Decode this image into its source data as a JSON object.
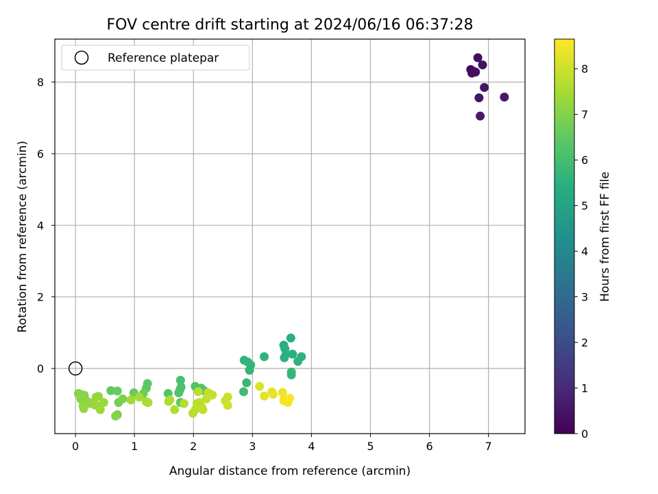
{
  "chart_data": {
    "type": "scatter",
    "title": "FOV centre drift starting at 2024/06/16 06:37:28",
    "xlabel": "Angular distance from reference (arcmin)",
    "ylabel": "Rotation from reference (arcmin)",
    "xlim": [
      -0.35,
      7.62
    ],
    "ylim": [
      -1.82,
      9.2
    ],
    "xticks": [
      0,
      1,
      2,
      3,
      4,
      5,
      6,
      7
    ],
    "yticks": [
      0,
      2,
      4,
      6,
      8
    ],
    "grid": true,
    "legend": {
      "position": "top-left",
      "entries": [
        "Reference platepar"
      ]
    },
    "reference_point": {
      "x": 0,
      "y": 0,
      "label": "Reference platepar"
    },
    "colorbar": {
      "label": "Hours from first FF file",
      "colormap": "viridis",
      "range": [
        0,
        8.65
      ],
      "ticks": [
        0,
        1,
        2,
        3,
        4,
        5,
        6,
        7,
        8
      ]
    },
    "points": [
      {
        "x": 6.7,
        "y": 8.35,
        "c": 0.2
      },
      {
        "x": 6.75,
        "y": 8.3,
        "c": 0.25
      },
      {
        "x": 6.72,
        "y": 8.25,
        "c": 0.3
      },
      {
        "x": 6.78,
        "y": 8.28,
        "c": 0.3
      },
      {
        "x": 6.82,
        "y": 8.68,
        "c": 0.35
      },
      {
        "x": 6.9,
        "y": 8.48,
        "c": 0.4
      },
      {
        "x": 6.93,
        "y": 7.85,
        "c": 0.5
      },
      {
        "x": 6.84,
        "y": 7.56,
        "c": 0.5
      },
      {
        "x": 6.86,
        "y": 7.05,
        "c": 0.6
      },
      {
        "x": 7.27,
        "y": 7.58,
        "c": 0.6
      },
      {
        "x": 3.65,
        "y": 0.85,
        "c": 5.4
      },
      {
        "x": 3.53,
        "y": 0.65,
        "c": 5.4
      },
      {
        "x": 3.55,
        "y": 0.55,
        "c": 5.45
      },
      {
        "x": 3.68,
        "y": 0.4,
        "c": 5.45
      },
      {
        "x": 3.83,
        "y": 0.33,
        "c": 5.5
      },
      {
        "x": 3.57,
        "y": 0.4,
        "c": 5.5
      },
      {
        "x": 3.54,
        "y": 0.3,
        "c": 5.5
      },
      {
        "x": 3.77,
        "y": 0.2,
        "c": 5.55
      },
      {
        "x": 3.2,
        "y": 0.33,
        "c": 5.55
      },
      {
        "x": 2.86,
        "y": 0.23,
        "c": 5.6
      },
      {
        "x": 2.92,
        "y": 0.18,
        "c": 5.6
      },
      {
        "x": 2.97,
        "y": 0.1,
        "c": 5.65
      },
      {
        "x": 2.95,
        "y": -0.05,
        "c": 5.65
      },
      {
        "x": 3.66,
        "y": -0.1,
        "c": 5.7
      },
      {
        "x": 3.66,
        "y": -0.18,
        "c": 5.7
      },
      {
        "x": 2.9,
        "y": -0.4,
        "c": 5.8
      },
      {
        "x": 2.85,
        "y": -0.65,
        "c": 5.9
      },
      {
        "x": 1.78,
        "y": -0.33,
        "c": 6.05
      },
      {
        "x": 1.79,
        "y": -0.52,
        "c": 6.1
      },
      {
        "x": 1.77,
        "y": -0.6,
        "c": 6.15
      },
      {
        "x": 1.75,
        "y": -0.68,
        "c": 6.2
      },
      {
        "x": 1.57,
        "y": -0.7,
        "c": 6.25
      },
      {
        "x": 2.03,
        "y": -0.5,
        "c": 6.2
      },
      {
        "x": 2.13,
        "y": -0.55,
        "c": 6.25
      },
      {
        "x": 2.18,
        "y": -0.62,
        "c": 6.3
      },
      {
        "x": 1.78,
        "y": -0.95,
        "c": 6.4
      },
      {
        "x": 1.22,
        "y": -0.42,
        "c": 6.4
      },
      {
        "x": 1.2,
        "y": -0.55,
        "c": 6.45
      },
      {
        "x": 0.6,
        "y": -0.62,
        "c": 6.5
      },
      {
        "x": 0.71,
        "y": -0.63,
        "c": 6.6
      },
      {
        "x": 0.99,
        "y": -0.68,
        "c": 6.6
      },
      {
        "x": 1.15,
        "y": -0.7,
        "c": 6.7
      },
      {
        "x": 0.71,
        "y": -1.29,
        "c": 6.9
      },
      {
        "x": 0.68,
        "y": -1.33,
        "c": 7.0
      },
      {
        "x": 0.73,
        "y": -0.95,
        "c": 6.8
      },
      {
        "x": 0.8,
        "y": -0.85,
        "c": 6.9
      },
      {
        "x": 0.05,
        "y": -0.7,
        "c": 7.0
      },
      {
        "x": 0.1,
        "y": -0.73,
        "c": 7.05
      },
      {
        "x": 0.15,
        "y": -0.75,
        "c": 7.05
      },
      {
        "x": 0.09,
        "y": -0.85,
        "c": 7.1
      },
      {
        "x": 0.12,
        "y": -0.9,
        "c": 7.1
      },
      {
        "x": 0.2,
        "y": -0.92,
        "c": 7.15
      },
      {
        "x": 0.13,
        "y": -1.05,
        "c": 7.2
      },
      {
        "x": 0.14,
        "y": -1.12,
        "c": 7.2
      },
      {
        "x": 0.25,
        "y": -0.98,
        "c": 7.2
      },
      {
        "x": 0.3,
        "y": -0.95,
        "c": 7.25
      },
      {
        "x": 0.35,
        "y": -0.8,
        "c": 7.2
      },
      {
        "x": 0.39,
        "y": -0.78,
        "c": 7.25
      },
      {
        "x": 0.33,
        "y": -1.02,
        "c": 7.3
      },
      {
        "x": 0.38,
        "y": -1.05,
        "c": 7.3
      },
      {
        "x": 0.42,
        "y": -1.15,
        "c": 7.35
      },
      {
        "x": 0.48,
        "y": -0.95,
        "c": 7.35
      },
      {
        "x": 0.94,
        "y": -0.88,
        "c": 7.4
      },
      {
        "x": 1.08,
        "y": -0.8,
        "c": 7.45
      },
      {
        "x": 1.23,
        "y": -0.95,
        "c": 7.5
      },
      {
        "x": 1.2,
        "y": -0.93,
        "c": 7.5
      },
      {
        "x": 1.6,
        "y": -0.88,
        "c": 7.55
      },
      {
        "x": 1.58,
        "y": -0.92,
        "c": 7.6
      },
      {
        "x": 1.68,
        "y": -1.15,
        "c": 7.6
      },
      {
        "x": 1.84,
        "y": -0.98,
        "c": 7.65
      },
      {
        "x": 1.99,
        "y": -1.25,
        "c": 7.7
      },
      {
        "x": 2.03,
        "y": -1.15,
        "c": 7.75
      },
      {
        "x": 2.08,
        "y": -0.65,
        "c": 7.75
      },
      {
        "x": 2.06,
        "y": -0.98,
        "c": 7.8
      },
      {
        "x": 2.1,
        "y": -0.95,
        "c": 7.8
      },
      {
        "x": 2.14,
        "y": -1.08,
        "c": 7.8
      },
      {
        "x": 2.16,
        "y": -1.15,
        "c": 7.85
      },
      {
        "x": 2.22,
        "y": -0.85,
        "c": 7.85
      },
      {
        "x": 2.25,
        "y": -0.68,
        "c": 7.85
      },
      {
        "x": 2.32,
        "y": -0.74,
        "c": 7.9
      },
      {
        "x": 2.54,
        "y": -0.9,
        "c": 7.95
      },
      {
        "x": 2.58,
        "y": -0.8,
        "c": 7.95
      },
      {
        "x": 2.58,
        "y": -1.03,
        "c": 8.0
      },
      {
        "x": 3.12,
        "y": -0.5,
        "c": 8.2
      },
      {
        "x": 3.2,
        "y": -0.77,
        "c": 8.3
      },
      {
        "x": 3.33,
        "y": -0.65,
        "c": 8.35
      },
      {
        "x": 3.35,
        "y": -0.72,
        "c": 8.35
      },
      {
        "x": 3.51,
        "y": -0.67,
        "c": 8.4
      },
      {
        "x": 3.54,
        "y": -0.85,
        "c": 8.45
      },
      {
        "x": 3.53,
        "y": -0.9,
        "c": 8.5
      },
      {
        "x": 3.6,
        "y": -0.95,
        "c": 8.55
      },
      {
        "x": 3.63,
        "y": -0.83,
        "c": 8.6
      }
    ]
  }
}
